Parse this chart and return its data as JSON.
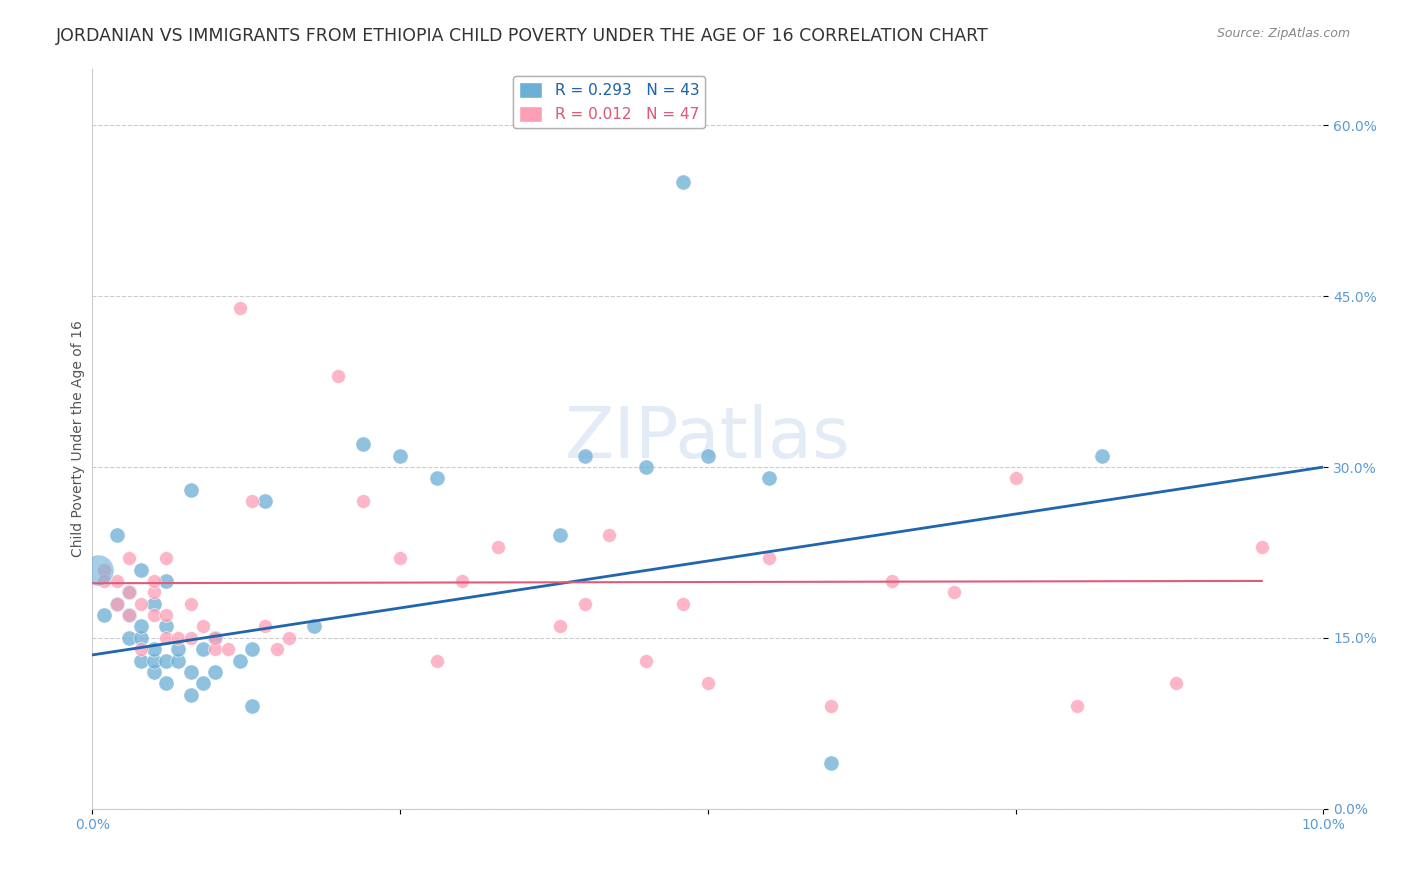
{
  "title": "JORDANIAN VS IMMIGRANTS FROM ETHIOPIA CHILD POVERTY UNDER THE AGE OF 16 CORRELATION CHART",
  "source": "Source: ZipAtlas.com",
  "xlabel_label": "",
  "ylabel_label": "Child Poverty Under the Age of 16",
  "xlim": [
    0.0,
    0.1
  ],
  "ylim": [
    0.0,
    0.65
  ],
  "yticks": [
    0.0,
    0.15,
    0.3,
    0.45,
    0.6
  ],
  "ytick_labels": [
    "0.0%",
    "15.0%",
    "30.0%",
    "45.0%",
    "60.0%"
  ],
  "xticks": [
    0.0,
    0.025,
    0.05,
    0.075,
    0.1
  ],
  "xtick_labels": [
    "0.0%",
    "",
    "",
    "",
    "10.0%"
  ],
  "blue_R": 0.293,
  "blue_N": 43,
  "pink_R": 0.012,
  "pink_N": 47,
  "blue_color": "#6baed6",
  "pink_color": "#fc9eb5",
  "blue_line_color": "#2166ac",
  "pink_line_color": "#e05a7a",
  "legend_box_color": "#ddeeff",
  "watermark": "ZIPatlas",
  "blue_scatter_x": [
    0.001,
    0.002,
    0.002,
    0.003,
    0.003,
    0.003,
    0.004,
    0.004,
    0.004,
    0.004,
    0.005,
    0.005,
    0.005,
    0.005,
    0.006,
    0.006,
    0.006,
    0.006,
    0.007,
    0.007,
    0.008,
    0.008,
    0.008,
    0.009,
    0.009,
    0.01,
    0.01,
    0.012,
    0.013,
    0.013,
    0.014,
    0.018,
    0.022,
    0.025,
    0.028,
    0.038,
    0.04,
    0.045,
    0.048,
    0.05,
    0.055,
    0.06,
    0.082
  ],
  "blue_scatter_y": [
    0.17,
    0.24,
    0.18,
    0.15,
    0.17,
    0.19,
    0.13,
    0.15,
    0.16,
    0.21,
    0.12,
    0.13,
    0.14,
    0.18,
    0.11,
    0.13,
    0.16,
    0.2,
    0.13,
    0.14,
    0.1,
    0.12,
    0.28,
    0.11,
    0.14,
    0.12,
    0.15,
    0.13,
    0.09,
    0.14,
    0.27,
    0.16,
    0.32,
    0.31,
    0.29,
    0.24,
    0.31,
    0.3,
    0.55,
    0.31,
    0.29,
    0.04,
    0.31
  ],
  "pink_scatter_x": [
    0.001,
    0.001,
    0.002,
    0.002,
    0.003,
    0.003,
    0.003,
    0.004,
    0.004,
    0.005,
    0.005,
    0.005,
    0.006,
    0.006,
    0.006,
    0.007,
    0.008,
    0.008,
    0.009,
    0.01,
    0.01,
    0.011,
    0.012,
    0.013,
    0.014,
    0.015,
    0.016,
    0.02,
    0.022,
    0.025,
    0.028,
    0.03,
    0.033,
    0.038,
    0.04,
    0.042,
    0.045,
    0.048,
    0.05,
    0.055,
    0.06,
    0.065,
    0.07,
    0.075,
    0.08,
    0.088,
    0.095
  ],
  "pink_scatter_y": [
    0.21,
    0.2,
    0.18,
    0.2,
    0.17,
    0.22,
    0.19,
    0.18,
    0.14,
    0.19,
    0.17,
    0.2,
    0.15,
    0.17,
    0.22,
    0.15,
    0.15,
    0.18,
    0.16,
    0.14,
    0.15,
    0.14,
    0.44,
    0.27,
    0.16,
    0.14,
    0.15,
    0.38,
    0.27,
    0.22,
    0.13,
    0.2,
    0.23,
    0.16,
    0.18,
    0.24,
    0.13,
    0.18,
    0.11,
    0.22,
    0.09,
    0.2,
    0.19,
    0.29,
    0.09,
    0.11,
    0.23
  ],
  "blue_line_x": [
    0.0,
    0.1
  ],
  "blue_line_y": [
    0.135,
    0.3
  ],
  "pink_line_x": [
    0.0,
    0.095
  ],
  "pink_line_y": [
    0.198,
    0.2
  ],
  "background_color": "#ffffff",
  "grid_color": "#cccccc",
  "title_fontsize": 12.5,
  "axis_label_fontsize": 10,
  "tick_fontsize": 10,
  "tick_color": "#5b9bd5",
  "title_color": "#333333"
}
